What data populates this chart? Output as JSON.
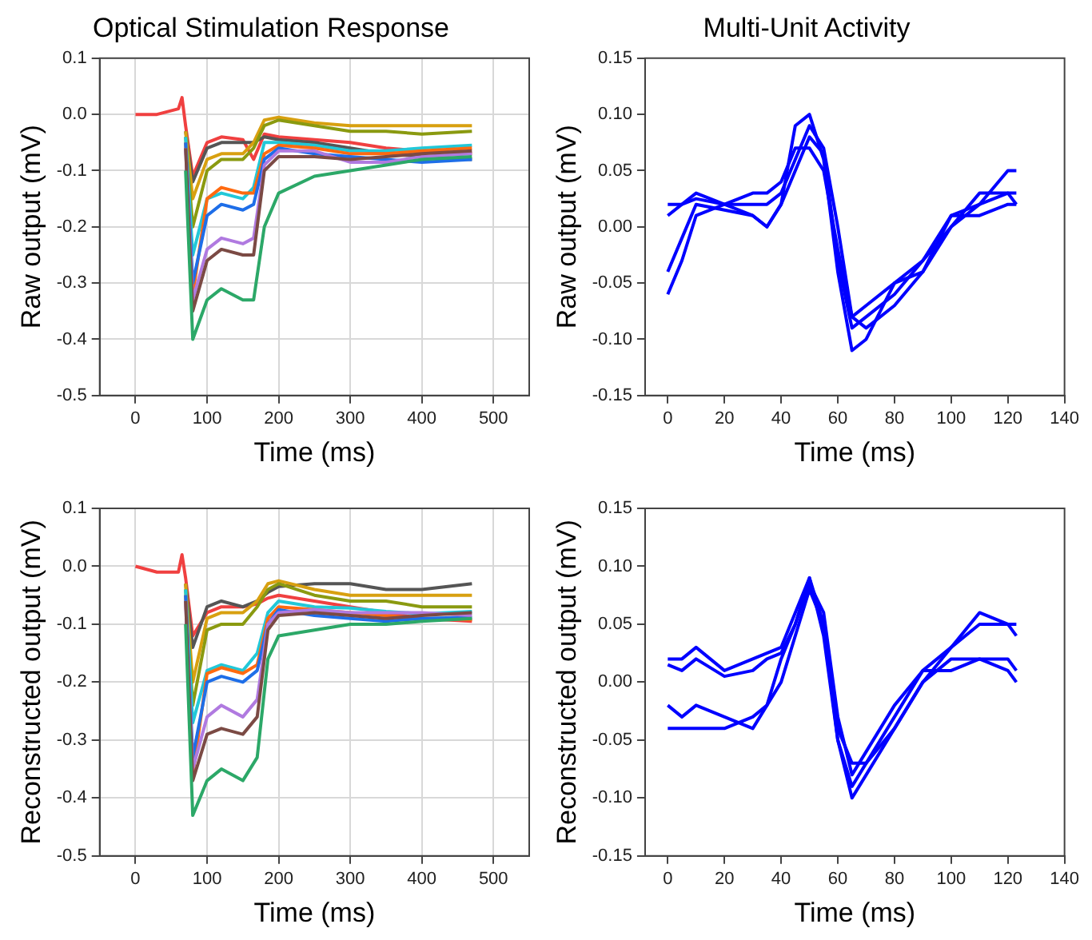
{
  "chart_data": [
    {
      "type": "line",
      "title": "Optical Stimulation Response",
      "xlabel": "Time (ms)",
      "ylabel": "Raw output (mV)",
      "xlim": [
        -50,
        550
      ],
      "xticks": [
        0,
        100,
        200,
        300,
        400,
        500
      ],
      "ylim": [
        -0.5,
        0.1
      ],
      "yticks": [
        -0.5,
        -0.4,
        -0.3,
        -0.2,
        -0.1,
        {
          "value": 0,
          "label": "0.0"
        },
        0.1
      ],
      "grid": true,
      "legend": false,
      "marker": "none",
      "line_style": "solid",
      "x": [
        0,
        30,
        60,
        65,
        70,
        80,
        100,
        120,
        150,
        165,
        180,
        200,
        250,
        300,
        350,
        400,
        470
      ],
      "series": [
        {
          "color": "#2ca868",
          "values": [
            null,
            null,
            null,
            null,
            -0.1,
            -0.4,
            -0.33,
            -0.31,
            -0.33,
            -0.33,
            -0.2,
            -0.14,
            -0.11,
            -0.1,
            -0.09,
            -0.08,
            -0.075
          ]
        },
        {
          "color": "#7b4a44",
          "values": [
            null,
            null,
            null,
            null,
            -0.06,
            -0.35,
            -0.26,
            -0.24,
            -0.25,
            -0.25,
            -0.1,
            -0.075,
            -0.075,
            -0.08,
            -0.075,
            -0.07,
            -0.065
          ]
        },
        {
          "color": "#b07ae0",
          "values": [
            null,
            null,
            null,
            null,
            -0.06,
            -0.33,
            -0.24,
            -0.22,
            -0.23,
            -0.22,
            -0.09,
            -0.065,
            -0.065,
            -0.085,
            -0.085,
            -0.075,
            -0.07
          ]
        },
        {
          "color": "#1e6ee8",
          "values": [
            null,
            null,
            null,
            null,
            -0.05,
            -0.3,
            -0.18,
            -0.16,
            -0.17,
            -0.16,
            -0.08,
            -0.06,
            -0.07,
            -0.075,
            -0.08,
            -0.085,
            -0.08
          ]
        },
        {
          "color": "#ff6a10",
          "values": [
            null,
            null,
            null,
            null,
            -0.05,
            -0.32,
            -0.15,
            -0.13,
            -0.14,
            -0.14,
            -0.07,
            -0.055,
            -0.06,
            -0.07,
            -0.07,
            -0.065,
            -0.06
          ]
        },
        {
          "color": "#22c8d8",
          "values": [
            null,
            null,
            null,
            null,
            -0.04,
            -0.25,
            -0.15,
            -0.14,
            -0.15,
            -0.13,
            -0.05,
            -0.05,
            -0.055,
            -0.065,
            -0.065,
            -0.06,
            -0.055
          ]
        },
        {
          "color": "#8a9a10",
          "values": [
            null,
            null,
            null,
            null,
            -0.04,
            -0.2,
            -0.1,
            -0.08,
            -0.08,
            -0.06,
            -0.02,
            -0.01,
            -0.02,
            -0.03,
            -0.03,
            -0.035,
            -0.03
          ]
        },
        {
          "color": "#d8a010",
          "values": [
            null,
            null,
            null,
            null,
            -0.03,
            -0.15,
            -0.08,
            -0.07,
            -0.07,
            -0.05,
            -0.01,
            -0.005,
            -0.015,
            -0.02,
            -0.02,
            -0.02,
            -0.02
          ]
        },
        {
          "color": "#555555",
          "values": [
            null,
            null,
            null,
            null,
            -0.03,
            -0.12,
            -0.06,
            -0.05,
            -0.05,
            -0.05,
            -0.04,
            -0.045,
            -0.05,
            -0.06,
            -0.07,
            -0.075,
            -0.08
          ]
        },
        {
          "color": "#f04040",
          "values": [
            0,
            0,
            0.01,
            0.03,
            -0.02,
            -0.11,
            -0.05,
            -0.04,
            -0.045,
            -0.08,
            -0.035,
            -0.04,
            -0.045,
            -0.05,
            -0.06,
            -0.065,
            -0.07
          ]
        }
      ]
    },
    {
      "type": "line",
      "title": "Multi-Unit Activity",
      "xlabel": "Time (ms)",
      "ylabel": "Raw output (mV)",
      "xlim": [
        -8,
        140
      ],
      "xticks": [
        0,
        20,
        40,
        60,
        80,
        100,
        120,
        140
      ],
      "ylim": [
        -0.15,
        0.15
      ],
      "yticks": [
        -0.15,
        {
          "value": -0.1,
          "label": "-0.10"
        },
        -0.05,
        {
          "value": 0,
          "label": "0.00"
        },
        0.05,
        {
          "value": 0.1,
          "label": "0.10"
        },
        0.15
      ],
      "grid": false,
      "legend": false,
      "marker": "none",
      "line_style": "solid",
      "x": [
        0,
        5,
        10,
        20,
        30,
        35,
        40,
        45,
        50,
        55,
        60,
        65,
        70,
        80,
        90,
        100,
        110,
        120,
        123
      ],
      "series": [
        {
          "color": "#0000ff",
          "values": [
            0.01,
            0.02,
            0.025,
            0.02,
            0.02,
            0.02,
            0.03,
            0.06,
            0.09,
            0.07,
            0.0,
            -0.08,
            -0.09,
            -0.07,
            -0.04,
            0.01,
            0.02,
            0.03,
            0.03
          ]
        },
        {
          "color": "#0000ff",
          "values": [
            -0.06,
            -0.03,
            0.01,
            0.02,
            0.01,
            0.0,
            0.02,
            0.09,
            0.1,
            0.06,
            -0.04,
            -0.11,
            -0.1,
            -0.05,
            -0.03,
            0.0,
            0.02,
            0.05,
            0.05
          ]
        },
        {
          "color": "#0000ff",
          "values": [
            0.02,
            0.02,
            0.03,
            0.02,
            0.03,
            0.03,
            0.04,
            0.07,
            0.07,
            0.05,
            -0.02,
            -0.08,
            -0.07,
            -0.05,
            -0.04,
            0.0,
            0.03,
            0.03,
            0.02
          ]
        },
        {
          "color": "#0000ff",
          "values": [
            -0.04,
            -0.01,
            0.02,
            0.015,
            0.01,
            0.0,
            0.02,
            0.05,
            0.08,
            0.065,
            -0.03,
            -0.09,
            -0.08,
            -0.06,
            -0.03,
            0.01,
            0.01,
            0.02,
            0.02
          ]
        }
      ]
    },
    {
      "type": "line",
      "xlabel": "Time (ms)",
      "ylabel": "Reconstructed output (mV)",
      "xlim": [
        -50,
        550
      ],
      "xticks": [
        0,
        100,
        200,
        300,
        400,
        500
      ],
      "ylim": [
        -0.5,
        0.1
      ],
      "yticks": [
        -0.5,
        -0.4,
        -0.3,
        -0.2,
        -0.1,
        {
          "value": 0,
          "label": "0.0"
        },
        0.1
      ],
      "grid": true,
      "legend": false,
      "marker": "none",
      "line_style": "solid",
      "x": [
        0,
        30,
        60,
        65,
        70,
        80,
        100,
        120,
        150,
        170,
        185,
        200,
        250,
        300,
        350,
        400,
        470
      ],
      "series": [
        {
          "color": "#2ca868",
          "values": [
            null,
            null,
            null,
            null,
            -0.1,
            -0.43,
            -0.37,
            -0.35,
            -0.37,
            -0.33,
            -0.16,
            -0.12,
            -0.11,
            -0.1,
            -0.1,
            -0.095,
            -0.09
          ]
        },
        {
          "color": "#7b4a44",
          "values": [
            null,
            null,
            null,
            null,
            -0.06,
            -0.37,
            -0.29,
            -0.28,
            -0.29,
            -0.26,
            -0.11,
            -0.085,
            -0.08,
            -0.085,
            -0.09,
            -0.085,
            -0.08
          ]
        },
        {
          "color": "#b07ae0",
          "values": [
            null,
            null,
            null,
            null,
            -0.06,
            -0.35,
            -0.26,
            -0.24,
            -0.26,
            -0.23,
            -0.1,
            -0.08,
            -0.075,
            -0.08,
            -0.08,
            -0.08,
            -0.085
          ]
        },
        {
          "color": "#1e6ee8",
          "values": [
            null,
            null,
            null,
            null,
            -0.05,
            -0.33,
            -0.2,
            -0.19,
            -0.2,
            -0.18,
            -0.1,
            -0.075,
            -0.085,
            -0.09,
            -0.095,
            -0.09,
            -0.088
          ]
        },
        {
          "color": "#ff6a10",
          "values": [
            null,
            null,
            null,
            null,
            -0.05,
            -0.36,
            -0.185,
            -0.175,
            -0.185,
            -0.17,
            -0.09,
            -0.07,
            -0.075,
            -0.08,
            -0.085,
            -0.09,
            -0.092
          ]
        },
        {
          "color": "#22c8d8",
          "values": [
            null,
            null,
            null,
            null,
            -0.04,
            -0.27,
            -0.18,
            -0.17,
            -0.18,
            -0.15,
            -0.08,
            -0.06,
            -0.07,
            -0.072,
            -0.078,
            -0.082,
            -0.078
          ]
        },
        {
          "color": "#8a9a10",
          "values": [
            null,
            null,
            null,
            null,
            -0.04,
            -0.24,
            -0.11,
            -0.1,
            -0.1,
            -0.07,
            -0.04,
            -0.03,
            -0.05,
            -0.06,
            -0.06,
            -0.07,
            -0.07
          ]
        },
        {
          "color": "#d8a010",
          "values": [
            null,
            null,
            null,
            null,
            -0.03,
            -0.2,
            -0.09,
            -0.08,
            -0.08,
            -0.06,
            -0.03,
            -0.025,
            -0.04,
            -0.05,
            -0.05,
            -0.05,
            -0.05
          ]
        },
        {
          "color": "#555555",
          "values": [
            null,
            null,
            null,
            null,
            -0.03,
            -0.14,
            -0.07,
            -0.06,
            -0.07,
            -0.06,
            -0.045,
            -0.035,
            -0.03,
            -0.03,
            -0.04,
            -0.04,
            -0.03
          ]
        },
        {
          "color": "#f04040",
          "values": [
            0,
            -0.01,
            -0.01,
            0.02,
            -0.02,
            -0.12,
            -0.08,
            -0.07,
            -0.07,
            -0.065,
            -0.055,
            -0.05,
            -0.06,
            -0.07,
            -0.08,
            -0.09,
            -0.095
          ]
        }
      ]
    },
    {
      "type": "line",
      "xlabel": "Time (ms)",
      "ylabel": "Reconstructed output (mV)",
      "xlim": [
        -8,
        140
      ],
      "xticks": [
        0,
        20,
        40,
        60,
        80,
        100,
        120,
        140
      ],
      "ylim": [
        -0.15,
        0.15
      ],
      "yticks": [
        -0.15,
        {
          "value": -0.1,
          "label": "-0.10"
        },
        -0.05,
        {
          "value": 0,
          "label": "0.00"
        },
        0.05,
        {
          "value": 0.1,
          "label": "0.10"
        },
        0.15
      ],
      "grid": false,
      "legend": false,
      "marker": "none",
      "line_style": "solid",
      "x": [
        0,
        5,
        10,
        20,
        30,
        35,
        40,
        45,
        50,
        55,
        60,
        65,
        70,
        80,
        90,
        100,
        110,
        120,
        123
      ],
      "series": [
        {
          "color": "#0000ff",
          "values": [
            0.02,
            0.02,
            0.03,
            0.01,
            0.02,
            0.025,
            0.03,
            0.06,
            0.09,
            0.05,
            -0.04,
            -0.07,
            -0.07,
            -0.04,
            0.0,
            0.03,
            0.06,
            0.05,
            0.05
          ]
        },
        {
          "color": "#0000ff",
          "values": [
            -0.04,
            -0.04,
            -0.04,
            -0.04,
            -0.03,
            -0.02,
            0.0,
            0.04,
            0.08,
            0.05,
            -0.05,
            -0.1,
            -0.08,
            -0.04,
            0.0,
            0.02,
            0.02,
            0.02,
            0.01
          ]
        },
        {
          "color": "#0000ff",
          "values": [
            -0.02,
            -0.03,
            -0.02,
            -0.03,
            -0.04,
            -0.02,
            0.02,
            0.05,
            0.09,
            0.04,
            -0.05,
            -0.09,
            -0.07,
            -0.03,
            0.01,
            0.03,
            0.05,
            0.05,
            0.04
          ]
        },
        {
          "color": "#0000ff",
          "values": [
            0.015,
            0.01,
            0.02,
            0.005,
            0.01,
            0.02,
            0.025,
            0.05,
            0.085,
            0.06,
            -0.03,
            -0.08,
            -0.06,
            -0.02,
            0.01,
            0.01,
            0.02,
            0.01,
            0.0
          ]
        }
      ]
    }
  ]
}
